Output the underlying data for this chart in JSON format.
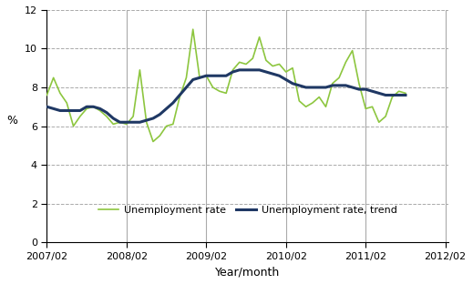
{
  "title": "",
  "xlabel": "Year/month",
  "ylabel": "%",
  "ylim": [
    0,
    12
  ],
  "yticks": [
    0,
    2,
    4,
    6,
    8,
    10,
    12
  ],
  "xtick_labels": [
    "2007/02",
    "2008/02",
    "2009/02",
    "2010/02",
    "2011/02",
    "2012/02"
  ],
  "unemployment_rate": [
    7.6,
    8.5,
    7.7,
    7.2,
    6.0,
    6.5,
    6.9,
    7.0,
    6.8,
    6.5,
    6.1,
    6.2,
    6.1,
    6.5,
    8.9,
    6.2,
    5.2,
    5.5,
    6.0,
    6.1,
    7.5,
    8.5,
    11.0,
    8.5,
    8.6,
    8.0,
    7.8,
    7.7,
    8.9,
    9.3,
    9.2,
    9.5,
    10.6,
    9.4,
    9.1,
    9.2,
    8.8,
    9.0,
    7.3,
    7.0,
    7.2,
    7.5,
    7.0,
    8.2,
    8.5,
    9.3,
    9.9,
    8.2,
    6.9,
    7.0,
    6.2,
    6.5,
    7.5,
    7.8,
    7.7
  ],
  "unemployment_trend": [
    7.0,
    6.9,
    6.8,
    6.8,
    6.8,
    6.8,
    7.0,
    7.0,
    6.9,
    6.7,
    6.4,
    6.2,
    6.2,
    6.2,
    6.2,
    6.3,
    6.4,
    6.6,
    6.9,
    7.2,
    7.6,
    8.0,
    8.4,
    8.5,
    8.6,
    8.6,
    8.6,
    8.6,
    8.8,
    8.9,
    8.9,
    8.9,
    8.9,
    8.8,
    8.7,
    8.6,
    8.4,
    8.2,
    8.1,
    8.0,
    8.0,
    8.0,
    8.0,
    8.1,
    8.1,
    8.1,
    8.0,
    7.9,
    7.9,
    7.8,
    7.7,
    7.6,
    7.6,
    7.6,
    7.6
  ],
  "rate_color": "#8dc63f",
  "trend_color": "#1f3864",
  "rate_label": "Unemployment rate",
  "trend_label": "Unemployment rate, trend",
  "background_color": "#ffffff",
  "grid_color": "#aaaaaa",
  "vline_color": "#aaaaaa"
}
